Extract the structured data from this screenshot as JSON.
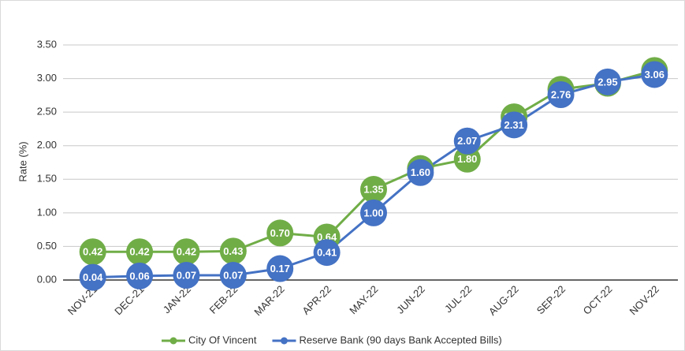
{
  "chart_data": {
    "type": "line",
    "y_label": "Rate (%)",
    "categories": [
      "NOV-21",
      "DEC-21",
      "JAN-22",
      "FEB-22",
      "MAR-22",
      "APR-22",
      "MAY-22",
      "JUN-22",
      "JUL-22",
      "AUG-22",
      "SEP-22",
      "OCT-22",
      "NOV-22"
    ],
    "series": [
      {
        "name": "City Of Vincent",
        "color": "#70ad47",
        "values": [
          0.42,
          0.42,
          0.42,
          0.43,
          0.7,
          0.64,
          1.35,
          1.66,
          1.8,
          2.43,
          2.84,
          2.93,
          3.12
        ],
        "value_labels": [
          "0.42",
          "0.42",
          "0.42",
          "0.43",
          "0.70",
          "0.64",
          "1.35",
          "1.66",
          "1.80",
          "2.43",
          "2.84",
          "2.93",
          "3.12"
        ]
      },
      {
        "name": "Reserve Bank (90 days Bank Accepted Bills)",
        "color": "#4472c4",
        "values": [
          0.04,
          0.06,
          0.07,
          0.07,
          0.17,
          0.41,
          1.0,
          1.6,
          2.07,
          2.31,
          2.76,
          2.95,
          3.06
        ],
        "value_labels": [
          "0.04",
          "0.06",
          "0.07",
          "0.07",
          "0.17",
          "0.41",
          "1.00",
          "1.60",
          "2.07",
          "2.31",
          "2.76",
          "2.95",
          "3.06"
        ]
      }
    ],
    "ylim": [
      0,
      3.5
    ],
    "yticks": [
      {
        "value": 0,
        "label": "0.00"
      },
      {
        "value": 0.5,
        "label": "0.50"
      },
      {
        "value": 1,
        "label": "1.00"
      },
      {
        "value": 1.5,
        "label": "1.50"
      },
      {
        "value": 2,
        "label": "2.00"
      },
      {
        "value": 2.5,
        "label": "2.50"
      },
      {
        "value": 3,
        "label": "3.00"
      },
      {
        "value": 3.5,
        "label": "3.50"
      }
    ],
    "grid": true,
    "legend": "bottom"
  }
}
